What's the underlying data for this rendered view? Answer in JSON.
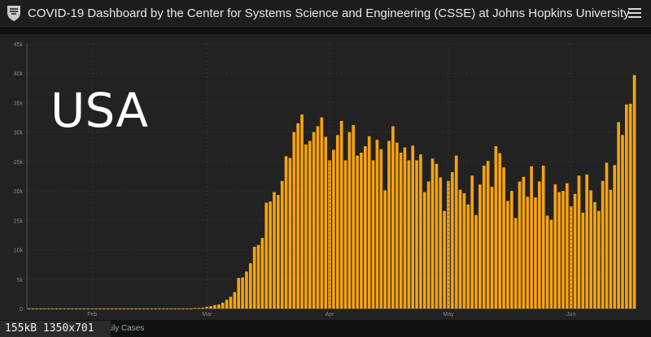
{
  "header": {
    "title": "COVID-19 Dashboard by the Center for Systems Science and Engineering (CSSE) at Johns Hopkins University (…",
    "logo_icon": "university-shield-icon",
    "menu_icon": "hamburger-menu-icon"
  },
  "overlay": {
    "country": "USA",
    "size_note": "155kB 1350x701"
  },
  "tabs": {
    "daily_cases": "Daily Cases"
  },
  "colors": {
    "bar": "#f5a312",
    "bg": "#222222",
    "grid": "#3a3a3a",
    "text": "#888888"
  },
  "chart_data": {
    "type": "bar",
    "title": "",
    "xlabel": "",
    "ylabel": "",
    "ylim": [
      0,
      45000
    ],
    "y_ticks": [
      "0",
      "5k",
      "10k",
      "15k",
      "20k",
      "25k",
      "30k",
      "35k",
      "40k",
      "45k"
    ],
    "x_ticks": [
      {
        "label": "Feb",
        "index": 16
      },
      {
        "label": "Mar",
        "index": 45
      },
      {
        "label": "Apr",
        "index": 76
      },
      {
        "label": "May",
        "index": 106
      },
      {
        "label": "Jun",
        "index": 137
      }
    ],
    "values": [
      0,
      0,
      0,
      0,
      0,
      0,
      0,
      0,
      0,
      0,
      0,
      0,
      0,
      0,
      0,
      0,
      0,
      0,
      0,
      0,
      0,
      0,
      0,
      0,
      0,
      0,
      0,
      0,
      0,
      0,
      0,
      0,
      0,
      0,
      0,
      0,
      0,
      0,
      0,
      0,
      0,
      0,
      100,
      120,
      150,
      300,
      400,
      600,
      700,
      1000,
      1500,
      2000,
      2800,
      5200,
      5300,
      6300,
      7700,
      10500,
      10800,
      12000,
      18000,
      18200,
      19800,
      19300,
      21700,
      25900,
      25600,
      30000,
      31500,
      33000,
      27900,
      28500,
      30000,
      31000,
      32500,
      29200,
      25200,
      27000,
      29500,
      31900,
      25200,
      30000,
      31200,
      26000,
      26500,
      27600,
      29300,
      25200,
      28700,
      27100,
      20100,
      28500,
      31000,
      28200,
      26500,
      27400,
      25200,
      27700,
      25200,
      26200,
      19800,
      21600,
      25500,
      24600,
      22300,
      16600,
      21700,
      23200,
      26000,
      20200,
      19600,
      17700,
      22600,
      15900,
      21100,
      24300,
      25100,
      20700,
      27600,
      26400,
      24000,
      18300,
      20000,
      15400,
      21600,
      22400,
      19000,
      24200,
      18900,
      21600,
      24300,
      15800,
      15100,
      21100,
      19800,
      20000,
      21300,
      17400,
      19500,
      22600,
      16300,
      22800,
      20100,
      18100,
      16600,
      21700,
      24800,
      20200,
      24400,
      31700,
      29500,
      34700,
      34800,
      39700
    ]
  }
}
